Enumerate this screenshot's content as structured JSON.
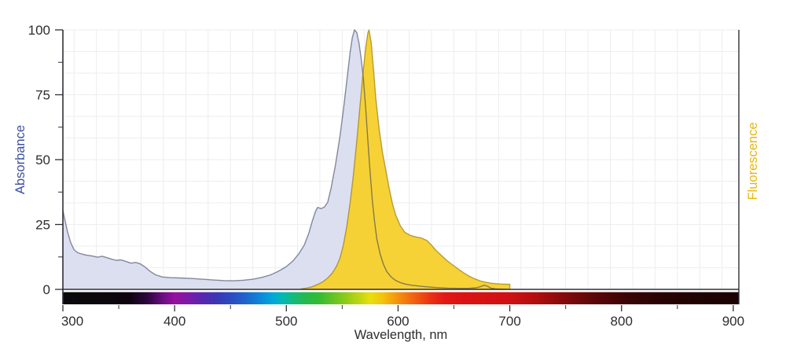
{
  "chart_data": {
    "type": "area",
    "title": "",
    "xlabel": "Wavelength, nm",
    "ylabel_left": "Absorbance",
    "ylabel_right": "Fluorescence",
    "xlim": [
      300,
      905
    ],
    "ylim": [
      0,
      100
    ],
    "x_major_ticks": [
      300,
      400,
      500,
      600,
      700,
      800,
      900
    ],
    "x_minor_ticks": [
      350,
      450,
      550,
      650,
      750,
      850
    ],
    "y_major_ticks": [
      0,
      25,
      50,
      75,
      100
    ],
    "y_minor_ticks": [
      12.5,
      37.5,
      62.5,
      87.5
    ],
    "grid": true,
    "legend": "none",
    "series": [
      {
        "name": "absorbance",
        "label": "Absorbance",
        "fill": "#dcdfef",
        "fill_opacity": 1,
        "stroke": "rgba(45,50,85,0.55)",
        "stroke_width": 1.4,
        "points": [
          [
            300,
            30.5
          ],
          [
            302,
            26.5
          ],
          [
            304,
            22.5
          ],
          [
            307,
            18
          ],
          [
            310,
            15.3
          ],
          [
            313,
            14.2
          ],
          [
            317,
            13.6
          ],
          [
            321,
            13.2
          ],
          [
            326,
            12.9
          ],
          [
            331,
            12.4
          ],
          [
            335,
            12.8
          ],
          [
            339,
            12.3
          ],
          [
            344,
            11.6
          ],
          [
            348,
            11.2
          ],
          [
            352,
            11.4
          ],
          [
            357,
            10.7
          ],
          [
            361,
            10.1
          ],
          [
            365,
            10.4
          ],
          [
            369,
            9.9
          ],
          [
            373,
            8.8
          ],
          [
            378,
            7
          ],
          [
            383,
            5.6
          ],
          [
            389,
            4.8
          ],
          [
            396,
            4.5
          ],
          [
            405,
            4.4
          ],
          [
            415,
            4.2
          ],
          [
            425,
            3.9
          ],
          [
            435,
            3.6
          ],
          [
            444,
            3.4
          ],
          [
            452,
            3.3
          ],
          [
            461,
            3.5
          ],
          [
            470,
            3.9
          ],
          [
            478,
            4.6
          ],
          [
            486,
            5.6
          ],
          [
            493,
            7
          ],
          [
            500,
            8.8
          ],
          [
            506,
            11
          ],
          [
            511,
            13.6
          ],
          [
            516,
            17
          ],
          [
            520,
            21.5
          ],
          [
            523,
            26
          ],
          [
            526,
            30
          ],
          [
            528,
            31.6
          ],
          [
            531,
            31.1
          ],
          [
            534,
            31.7
          ],
          [
            537,
            33.5
          ],
          [
            540,
            39
          ],
          [
            544,
            48
          ],
          [
            548,
            59
          ],
          [
            551,
            69
          ],
          [
            554,
            80
          ],
          [
            557,
            91
          ],
          [
            559,
            97
          ],
          [
            561,
            100
          ],
          [
            563,
            99
          ],
          [
            565,
            95
          ],
          [
            567,
            89
          ],
          [
            569,
            81
          ],
          [
            571,
            70
          ],
          [
            573,
            57
          ],
          [
            575,
            45
          ],
          [
            577,
            34
          ],
          [
            579,
            26
          ],
          [
            581,
            19.5
          ],
          [
            584,
            13.5
          ],
          [
            587,
            9.5
          ],
          [
            590,
            6.8
          ],
          [
            594,
            4.7
          ],
          [
            598,
            3.4
          ],
          [
            602,
            2.6
          ],
          [
            607,
            2
          ],
          [
            612,
            1.6
          ],
          [
            618,
            1.3
          ],
          [
            625,
            1
          ],
          [
            634,
            0.7
          ],
          [
            644,
            0.5
          ],
          [
            654,
            0.4
          ],
          [
            663,
            0.4
          ],
          [
            670,
            0.6
          ],
          [
            674,
            1.1
          ],
          [
            677,
            1.6
          ],
          [
            680,
            1.2
          ],
          [
            683,
            0.5
          ],
          [
            687,
            0.2
          ],
          [
            692,
            0.1
          ],
          [
            698,
            0
          ]
        ]
      },
      {
        "name": "fluorescence",
        "label": "Fluorescence",
        "fill": "#f5d02b",
        "fill_opacity": 0.95,
        "stroke": "rgba(146,116,10,0.65)",
        "stroke_width": 1.4,
        "points": [
          [
            513,
            0.2
          ],
          [
            518,
            0.5
          ],
          [
            523,
            1
          ],
          [
            528,
            1.9
          ],
          [
            533,
            3
          ],
          [
            537,
            4.4
          ],
          [
            541,
            6.2
          ],
          [
            545,
            9
          ],
          [
            548,
            12
          ],
          [
            551,
            17
          ],
          [
            554,
            24
          ],
          [
            557,
            33
          ],
          [
            560,
            44
          ],
          [
            563,
            57
          ],
          [
            566,
            71
          ],
          [
            569,
            85
          ],
          [
            571,
            93
          ],
          [
            573,
            99
          ],
          [
            574,
            100
          ],
          [
            576,
            95
          ],
          [
            578,
            85
          ],
          [
            580,
            74
          ],
          [
            583,
            62
          ],
          [
            586,
            53
          ],
          [
            589,
            46
          ],
          [
            592,
            39
          ],
          [
            595,
            33
          ],
          [
            598,
            28.5
          ],
          [
            602,
            24.5
          ],
          [
            606,
            22
          ],
          [
            611,
            20.8
          ],
          [
            616,
            20.2
          ],
          [
            621,
            19.8
          ],
          [
            626,
            18.8
          ],
          [
            630,
            17
          ],
          [
            634,
            15
          ],
          [
            639,
            13
          ],
          [
            644,
            11
          ],
          [
            649,
            9.4
          ],
          [
            654,
            7.8
          ],
          [
            659,
            6.3
          ],
          [
            664,
            5
          ],
          [
            669,
            4
          ],
          [
            674,
            3.2
          ],
          [
            679,
            2.7
          ],
          [
            685,
            2.3
          ],
          [
            691,
            2.1
          ],
          [
            696,
            2
          ],
          [
            700,
            2
          ],
          [
            700,
            0
          ]
        ]
      }
    ],
    "spectrum_bar": {
      "stops": [
        [
          300,
          "#0a0a0a"
        ],
        [
          360,
          "#0d040f"
        ],
        [
          376,
          "#2e0740"
        ],
        [
          390,
          "#6e0d85"
        ],
        [
          400,
          "#960f9e"
        ],
        [
          412,
          "#7e18a8"
        ],
        [
          424,
          "#5a26af"
        ],
        [
          437,
          "#3c35b6"
        ],
        [
          450,
          "#2c4ac1"
        ],
        [
          463,
          "#1f63cd"
        ],
        [
          476,
          "#0d85d8"
        ],
        [
          487,
          "#02a5da"
        ],
        [
          497,
          "#04b9b2"
        ],
        [
          507,
          "#14ba7a"
        ],
        [
          517,
          "#25b94d"
        ],
        [
          529,
          "#33bb33"
        ],
        [
          541,
          "#62c226"
        ],
        [
          553,
          "#8fca1a"
        ],
        [
          564,
          "#bad412"
        ],
        [
          575,
          "#e7df0e"
        ],
        [
          586,
          "#f3c40c"
        ],
        [
          596,
          "#f59f0c"
        ],
        [
          607,
          "#f4780e"
        ],
        [
          618,
          "#f05511"
        ],
        [
          629,
          "#ea3213"
        ],
        [
          642,
          "#e11815"
        ],
        [
          660,
          "#da1213"
        ],
        [
          700,
          "#d01113"
        ],
        [
          722,
          "#b30e0f"
        ],
        [
          748,
          "#850a0b"
        ],
        [
          775,
          "#5c0708"
        ],
        [
          805,
          "#3a0405"
        ],
        [
          840,
          "#270203"
        ],
        [
          870,
          "#1f0203"
        ],
        [
          905,
          "#1a0102"
        ]
      ]
    }
  },
  "colors": {
    "absorbance_label": "#3d4fa3",
    "fluorescence_label": "#e8b70e",
    "tick_text": "#2d2d31",
    "axis": "#2e2f36",
    "grid": "#ededf0",
    "background": "#ffffff"
  }
}
